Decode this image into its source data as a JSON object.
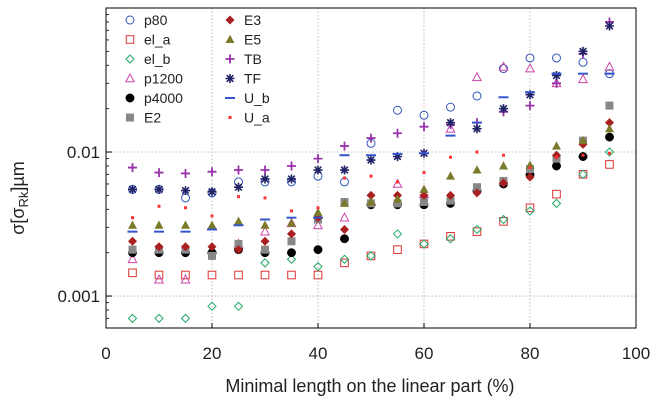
{
  "chart_data": {
    "type": "scatter",
    "xlabel": "Minimal length on the linear part (%)",
    "ylabel_main": "σ[σ",
    "ylabel_sub": "Rk",
    "ylabel_tail": "]µm",
    "xlim": [
      0,
      100
    ],
    "ylim": [
      0.0006,
      0.1
    ],
    "yscale": "log",
    "grid": true,
    "xticks": [
      0,
      20,
      40,
      60,
      80,
      100
    ],
    "xtick_labels": [
      "0",
      "20",
      "40",
      "60",
      "80",
      "100"
    ],
    "yticks": [
      0.001,
      0.01
    ],
    "ytick_labels": [
      "0.001",
      "0.01"
    ],
    "legend_position": "top-left",
    "x": [
      5,
      10,
      15,
      20,
      25,
      30,
      35,
      40,
      45,
      50,
      55,
      60,
      65,
      70,
      75,
      80,
      85,
      90,
      95
    ],
    "series": [
      {
        "name": "p80",
        "marker": "circle-open",
        "color": "#3355bb",
        "values": [
          0.0055,
          0.0055,
          0.0048,
          0.0052,
          0.0062,
          0.0062,
          0.0062,
          0.0068,
          0.0062,
          0.0115,
          0.0195,
          0.018,
          0.0205,
          0.0245,
          0.038,
          0.045,
          0.045,
          0.042,
          0.035
        ]
      },
      {
        "name": "el_a",
        "marker": "square-open",
        "color": "#dd3333",
        "values": [
          0.00145,
          0.0014,
          0.0014,
          0.0014,
          0.0014,
          0.0014,
          0.0014,
          0.0014,
          0.0017,
          0.0019,
          0.0021,
          0.0023,
          0.0026,
          0.0028,
          0.0033,
          0.0041,
          0.0051,
          0.007,
          0.0082
        ]
      },
      {
        "name": "el_b",
        "marker": "diamond-open",
        "color": "#22aa66",
        "values": [
          0.0007,
          0.0007,
          0.0007,
          0.00085,
          0.00085,
          0.0017,
          0.0018,
          0.0016,
          0.0018,
          0.0019,
          0.0027,
          0.0023,
          0.0025,
          0.0029,
          0.0034,
          0.0039,
          0.0044,
          0.007,
          0.01
        ]
      },
      {
        "name": "p1200",
        "marker": "triangle-open",
        "color": "#cc44aa",
        "values": [
          0.0018,
          0.0013,
          0.0013,
          0.0021,
          0.0023,
          0.0028,
          0.0032,
          0.0031,
          0.0035,
          0.0045,
          0.006,
          0.0051,
          0.0145,
          0.033,
          0.039,
          0.038,
          0.03,
          0.032,
          0.039
        ]
      },
      {
        "name": "p4000",
        "marker": "circle-filled",
        "color": "#000000",
        "values": [
          0.002,
          0.002,
          0.002,
          0.002,
          0.0021,
          0.002,
          0.002,
          0.0021,
          0.0025,
          0.0043,
          0.0043,
          0.0043,
          0.0044,
          0.0054,
          0.006,
          0.007,
          0.008,
          0.0093,
          0.0127
        ]
      },
      {
        "name": "E2",
        "marker": "square-filled",
        "color": "#888888",
        "values": [
          0.0021,
          0.0021,
          0.0021,
          0.0019,
          0.0023,
          0.0021,
          0.0024,
          0.0034,
          0.0045,
          0.0044,
          0.0044,
          0.0045,
          0.0046,
          0.0057,
          0.0063,
          0.0076,
          0.009,
          0.012,
          0.021
        ]
      },
      {
        "name": "E3",
        "marker": "diamond-filled",
        "color": "#aa1f1f",
        "values": [
          0.0024,
          0.0022,
          0.0022,
          0.0022,
          0.0021,
          0.0024,
          0.0027,
          0.0035,
          0.0029,
          0.005,
          0.005,
          0.005,
          0.005,
          0.0052,
          0.0061,
          0.0067,
          0.0095,
          0.0113,
          0.016
        ]
      },
      {
        "name": "E5",
        "marker": "triangle-filled",
        "color": "#7a7a2a",
        "values": [
          0.0031,
          0.0031,
          0.0031,
          0.0031,
          0.0033,
          0.0031,
          0.0032,
          0.0038,
          0.0044,
          0.0045,
          0.0047,
          0.0055,
          0.0068,
          0.0075,
          0.008,
          0.0081,
          0.011,
          0.012,
          0.0145
        ]
      },
      {
        "name": "TB",
        "marker": "plus",
        "color": "#9933aa",
        "values": [
          0.0078,
          0.0072,
          0.0071,
          0.0073,
          0.0075,
          0.0075,
          0.008,
          0.009,
          0.011,
          0.0125,
          0.0135,
          0.015,
          0.0155,
          0.016,
          0.019,
          0.021,
          0.03,
          0.048,
          0.08
        ]
      },
      {
        "name": "TF",
        "marker": "asterisk",
        "color": "#222266",
        "values": [
          0.0055,
          0.0055,
          0.0054,
          0.0053,
          0.0057,
          0.0065,
          0.0065,
          0.0075,
          0.0075,
          0.0088,
          0.0093,
          0.0098,
          0.016,
          0.0145,
          0.02,
          0.025,
          0.034,
          0.05,
          0.075
        ]
      },
      {
        "name": "U_b",
        "marker": "dash",
        "color": "#3355cc",
        "values": [
          0.0028,
          0.0028,
          0.0028,
          0.0029,
          0.0031,
          0.0034,
          0.0035,
          0.0035,
          0.0095,
          0.0095,
          0.0097,
          0.0098,
          0.013,
          0.016,
          0.024,
          0.026,
          0.035,
          0.035,
          0.035
        ]
      },
      {
        "name": "U_a",
        "marker": "dot",
        "color": "#ff3333",
        "values": [
          0.0035,
          0.0042,
          0.0041,
          0.0036,
          0.0049,
          0.0048,
          0.0039,
          0.0041,
          0.0066,
          0.0068,
          0.0062,
          0.0072,
          0.0092,
          0.01,
          0.0095,
          0.0078,
          0.0092,
          0.0095,
          0.0098
        ]
      }
    ]
  }
}
